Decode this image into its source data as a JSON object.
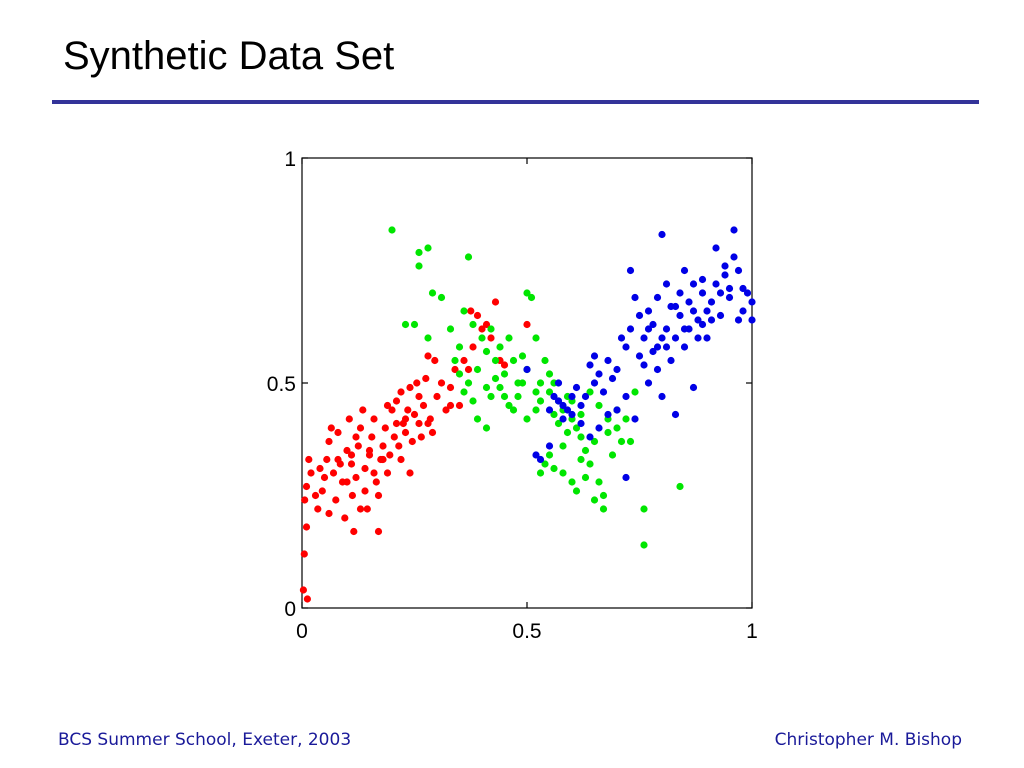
{
  "slide": {
    "title": "Synthetic Data Set",
    "footer_left": "BCS Summer School, Exeter, 2003",
    "footer_right": "Christopher M. Bishop"
  },
  "colors": {
    "title_rule": "#333399",
    "footer_text": "#1a1a99",
    "series_red": "#ff0000",
    "series_green": "#00e600",
    "series_blue": "#0000e6"
  },
  "chart_data": {
    "type": "scatter",
    "title": "",
    "xlabel": "",
    "ylabel": "",
    "xlim": [
      0,
      1
    ],
    "ylim": [
      0,
      1
    ],
    "grid": false,
    "x_ticks": [
      {
        "value": 0,
        "label": "0"
      },
      {
        "value": 0.5,
        "label": "0.5"
      },
      {
        "value": 1,
        "label": "1"
      }
    ],
    "y_ticks": [
      {
        "value": 0,
        "label": "0"
      },
      {
        "value": 0.5,
        "label": "0.5"
      },
      {
        "value": 1,
        "label": "1"
      }
    ],
    "series": [
      {
        "color": "#ff0000",
        "points": [
          [
            0.003,
            0.04
          ],
          [
            0.012,
            0.02
          ],
          [
            0.005,
            0.12
          ],
          [
            0.01,
            0.18
          ],
          [
            0.006,
            0.24
          ],
          [
            0.01,
            0.27
          ],
          [
            0.02,
            0.3
          ],
          [
            0.015,
            0.33
          ],
          [
            0.03,
            0.25
          ],
          [
            0.035,
            0.22
          ],
          [
            0.045,
            0.26
          ],
          [
            0.05,
            0.29
          ],
          [
            0.055,
            0.33
          ],
          [
            0.06,
            0.37
          ],
          [
            0.065,
            0.4
          ],
          [
            0.07,
            0.3
          ],
          [
            0.075,
            0.24
          ],
          [
            0.08,
            0.39
          ],
          [
            0.085,
            0.32
          ],
          [
            0.09,
            0.28
          ],
          [
            0.095,
            0.2
          ],
          [
            0.1,
            0.35
          ],
          [
            0.105,
            0.42
          ],
          [
            0.11,
            0.32
          ],
          [
            0.112,
            0.25
          ],
          [
            0.115,
            0.17
          ],
          [
            0.12,
            0.29
          ],
          [
            0.125,
            0.36
          ],
          [
            0.13,
            0.4
          ],
          [
            0.135,
            0.44
          ],
          [
            0.14,
            0.31
          ],
          [
            0.145,
            0.22
          ],
          [
            0.15,
            0.34
          ],
          [
            0.155,
            0.38
          ],
          [
            0.16,
            0.42
          ],
          [
            0.165,
            0.28
          ],
          [
            0.17,
            0.17
          ],
          [
            0.175,
            0.33
          ],
          [
            0.18,
            0.36
          ],
          [
            0.185,
            0.4
          ],
          [
            0.19,
            0.3
          ],
          [
            0.195,
            0.34
          ],
          [
            0.2,
            0.44
          ],
          [
            0.205,
            0.38
          ],
          [
            0.21,
            0.46
          ],
          [
            0.215,
            0.36
          ],
          [
            0.22,
            0.48
          ],
          [
            0.225,
            0.41
          ],
          [
            0.23,
            0.39
          ],
          [
            0.235,
            0.44
          ],
          [
            0.24,
            0.49
          ],
          [
            0.245,
            0.37
          ],
          [
            0.25,
            0.43
          ],
          [
            0.255,
            0.5
          ],
          [
            0.26,
            0.41
          ],
          [
            0.265,
            0.38
          ],
          [
            0.27,
            0.45
          ],
          [
            0.275,
            0.51
          ],
          [
            0.28,
            0.56
          ],
          [
            0.285,
            0.42
          ],
          [
            0.29,
            0.39
          ],
          [
            0.295,
            0.55
          ],
          [
            0.3,
            0.47
          ],
          [
            0.31,
            0.5
          ],
          [
            0.32,
            0.44
          ],
          [
            0.33,
            0.49
          ],
          [
            0.34,
            0.53
          ],
          [
            0.35,
            0.45
          ],
          [
            0.36,
            0.55
          ],
          [
            0.37,
            0.53
          ],
          [
            0.375,
            0.66
          ],
          [
            0.38,
            0.58
          ],
          [
            0.39,
            0.65
          ],
          [
            0.4,
            0.62
          ],
          [
            0.41,
            0.63
          ],
          [
            0.42,
            0.6
          ],
          [
            0.43,
            0.68
          ],
          [
            0.44,
            0.55
          ],
          [
            0.45,
            0.54
          ],
          [
            0.5,
            0.63
          ],
          [
            0.16,
            0.3
          ],
          [
            0.14,
            0.26
          ],
          [
            0.12,
            0.38
          ],
          [
            0.22,
            0.33
          ],
          [
            0.24,
            0.3
          ],
          [
            0.28,
            0.41
          ],
          [
            0.19,
            0.45
          ],
          [
            0.13,
            0.22
          ],
          [
            0.1,
            0.28
          ],
          [
            0.08,
            0.33
          ],
          [
            0.06,
            0.21
          ],
          [
            0.04,
            0.31
          ],
          [
            0.17,
            0.25
          ],
          [
            0.21,
            0.41
          ],
          [
            0.26,
            0.47
          ],
          [
            0.33,
            0.45
          ],
          [
            0.15,
            0.35
          ],
          [
            0.18,
            0.33
          ],
          [
            0.23,
            0.42
          ],
          [
            0.11,
            0.34
          ]
        ]
      },
      {
        "color": "#00e600",
        "points": [
          [
            0.2,
            0.84
          ],
          [
            0.26,
            0.79
          ],
          [
            0.28,
            0.8
          ],
          [
            0.26,
            0.76
          ],
          [
            0.37,
            0.78
          ],
          [
            0.29,
            0.7
          ],
          [
            0.31,
            0.69
          ],
          [
            0.25,
            0.63
          ],
          [
            0.23,
            0.63
          ],
          [
            0.28,
            0.6
          ],
          [
            0.33,
            0.62
          ],
          [
            0.35,
            0.58
          ],
          [
            0.36,
            0.66
          ],
          [
            0.38,
            0.63
          ],
          [
            0.4,
            0.6
          ],
          [
            0.41,
            0.57
          ],
          [
            0.42,
            0.62
          ],
          [
            0.43,
            0.55
          ],
          [
            0.44,
            0.58
          ],
          [
            0.45,
            0.52
          ],
          [
            0.46,
            0.6
          ],
          [
            0.47,
            0.55
          ],
          [
            0.48,
            0.5
          ],
          [
            0.49,
            0.56
          ],
          [
            0.5,
            0.53
          ],
          [
            0.5,
            0.7
          ],
          [
            0.51,
            0.69
          ],
          [
            0.52,
            0.6
          ],
          [
            0.53,
            0.5
          ],
          [
            0.54,
            0.55
          ],
          [
            0.55,
            0.48
          ],
          [
            0.56,
            0.5
          ],
          [
            0.57,
            0.46
          ],
          [
            0.58,
            0.44
          ],
          [
            0.59,
            0.47
          ],
          [
            0.6,
            0.42
          ],
          [
            0.61,
            0.4
          ],
          [
            0.62,
            0.38
          ],
          [
            0.63,
            0.35
          ],
          [
            0.64,
            0.32
          ],
          [
            0.65,
            0.37
          ],
          [
            0.66,
            0.28
          ],
          [
            0.67,
            0.25
          ],
          [
            0.68,
            0.39
          ],
          [
            0.69,
            0.34
          ],
          [
            0.7,
            0.44
          ],
          [
            0.71,
            0.37
          ],
          [
            0.72,
            0.42
          ],
          [
            0.73,
            0.37
          ],
          [
            0.74,
            0.48
          ],
          [
            0.56,
            0.31
          ],
          [
            0.55,
            0.34
          ],
          [
            0.54,
            0.32
          ],
          [
            0.53,
            0.3
          ],
          [
            0.58,
            0.36
          ],
          [
            0.6,
            0.28
          ],
          [
            0.61,
            0.26
          ],
          [
            0.63,
            0.29
          ],
          [
            0.65,
            0.24
          ],
          [
            0.67,
            0.22
          ],
          [
            0.76,
            0.22
          ],
          [
            0.76,
            0.14
          ],
          [
            0.84,
            0.27
          ],
          [
            0.39,
            0.42
          ],
          [
            0.41,
            0.4
          ],
          [
            0.42,
            0.47
          ],
          [
            0.44,
            0.49
          ],
          [
            0.46,
            0.45
          ],
          [
            0.48,
            0.47
          ],
          [
            0.52,
            0.44
          ],
          [
            0.57,
            0.41
          ],
          [
            0.6,
            0.46
          ],
          [
            0.62,
            0.43
          ],
          [
            0.64,
            0.48
          ],
          [
            0.66,
            0.45
          ],
          [
            0.68,
            0.42
          ],
          [
            0.7,
            0.4
          ],
          [
            0.52,
            0.48
          ],
          [
            0.55,
            0.52
          ],
          [
            0.49,
            0.5
          ],
          [
            0.47,
            0.44
          ],
          [
            0.45,
            0.47
          ],
          [
            0.43,
            0.51
          ],
          [
            0.41,
            0.49
          ],
          [
            0.39,
            0.53
          ],
          [
            0.37,
            0.5
          ],
          [
            0.35,
            0.52
          ],
          [
            0.34,
            0.55
          ],
          [
            0.36,
            0.48
          ],
          [
            0.38,
            0.46
          ],
          [
            0.5,
            0.42
          ],
          [
            0.53,
            0.46
          ],
          [
            0.56,
            0.43
          ],
          [
            0.59,
            0.39
          ],
          [
            0.62,
            0.33
          ],
          [
            0.58,
            0.3
          ]
        ]
      },
      {
        "color": "#0000e6",
        "points": [
          [
            0.5,
            0.53
          ],
          [
            0.52,
            0.34
          ],
          [
            0.53,
            0.33
          ],
          [
            0.55,
            0.36
          ],
          [
            0.55,
            0.44
          ],
          [
            0.57,
            0.46
          ],
          [
            0.57,
            0.5
          ],
          [
            0.58,
            0.42
          ],
          [
            0.59,
            0.44
          ],
          [
            0.6,
            0.47
          ],
          [
            0.61,
            0.49
          ],
          [
            0.62,
            0.45
          ],
          [
            0.63,
            0.47
          ],
          [
            0.64,
            0.54
          ],
          [
            0.65,
            0.56
          ],
          [
            0.65,
            0.5
          ],
          [
            0.66,
            0.52
          ],
          [
            0.67,
            0.48
          ],
          [
            0.68,
            0.55
          ],
          [
            0.69,
            0.51
          ],
          [
            0.7,
            0.53
          ],
          [
            0.71,
            0.6
          ],
          [
            0.72,
            0.58
          ],
          [
            0.72,
            0.29
          ],
          [
            0.73,
            0.62
          ],
          [
            0.73,
            0.75
          ],
          [
            0.74,
            0.69
          ],
          [
            0.75,
            0.56
          ],
          [
            0.75,
            0.65
          ],
          [
            0.76,
            0.54
          ],
          [
            0.76,
            0.6
          ],
          [
            0.77,
            0.66
          ],
          [
            0.77,
            0.5
          ],
          [
            0.78,
            0.63
          ],
          [
            0.78,
            0.57
          ],
          [
            0.79,
            0.69
          ],
          [
            0.79,
            0.53
          ],
          [
            0.8,
            0.6
          ],
          [
            0.8,
            0.83
          ],
          [
            0.8,
            0.47
          ],
          [
            0.81,
            0.62
          ],
          [
            0.81,
            0.72
          ],
          [
            0.82,
            0.55
          ],
          [
            0.82,
            0.67
          ],
          [
            0.83,
            0.6
          ],
          [
            0.83,
            0.43
          ],
          [
            0.84,
            0.7
          ],
          [
            0.84,
            0.65
          ],
          [
            0.85,
            0.58
          ],
          [
            0.85,
            0.75
          ],
          [
            0.86,
            0.62
          ],
          [
            0.86,
            0.68
          ],
          [
            0.87,
            0.72
          ],
          [
            0.87,
            0.49
          ],
          [
            0.88,
            0.64
          ],
          [
            0.88,
            0.6
          ],
          [
            0.89,
            0.7
          ],
          [
            0.89,
            0.73
          ],
          [
            0.9,
            0.66
          ],
          [
            0.9,
            0.6
          ],
          [
            0.91,
            0.68
          ],
          [
            0.92,
            0.72
          ],
          [
            0.92,
            0.8
          ],
          [
            0.93,
            0.65
          ],
          [
            0.94,
            0.74
          ],
          [
            0.94,
            0.76
          ],
          [
            0.95,
            0.71
          ],
          [
            0.95,
            0.69
          ],
          [
            0.96,
            0.78
          ],
          [
            0.96,
            0.84
          ],
          [
            0.97,
            0.75
          ],
          [
            0.97,
            0.64
          ],
          [
            0.98,
            0.71
          ],
          [
            0.98,
            0.66
          ],
          [
            0.99,
            0.7
          ],
          [
            1.0,
            0.68
          ],
          [
            1.0,
            0.64
          ],
          [
            0.74,
            0.42
          ],
          [
            0.72,
            0.47
          ],
          [
            0.7,
            0.44
          ],
          [
            0.68,
            0.43
          ],
          [
            0.66,
            0.4
          ],
          [
            0.64,
            0.38
          ],
          [
            0.62,
            0.41
          ],
          [
            0.6,
            0.43
          ],
          [
            0.58,
            0.45
          ],
          [
            0.56,
            0.47
          ],
          [
            0.79,
            0.58
          ],
          [
            0.77,
            0.62
          ],
          [
            0.83,
            0.67
          ],
          [
            0.85,
            0.62
          ],
          [
            0.87,
            0.66
          ],
          [
            0.89,
            0.63
          ],
          [
            0.91,
            0.64
          ],
          [
            0.93,
            0.7
          ],
          [
            0.81,
            0.58
          ]
        ]
      }
    ]
  }
}
